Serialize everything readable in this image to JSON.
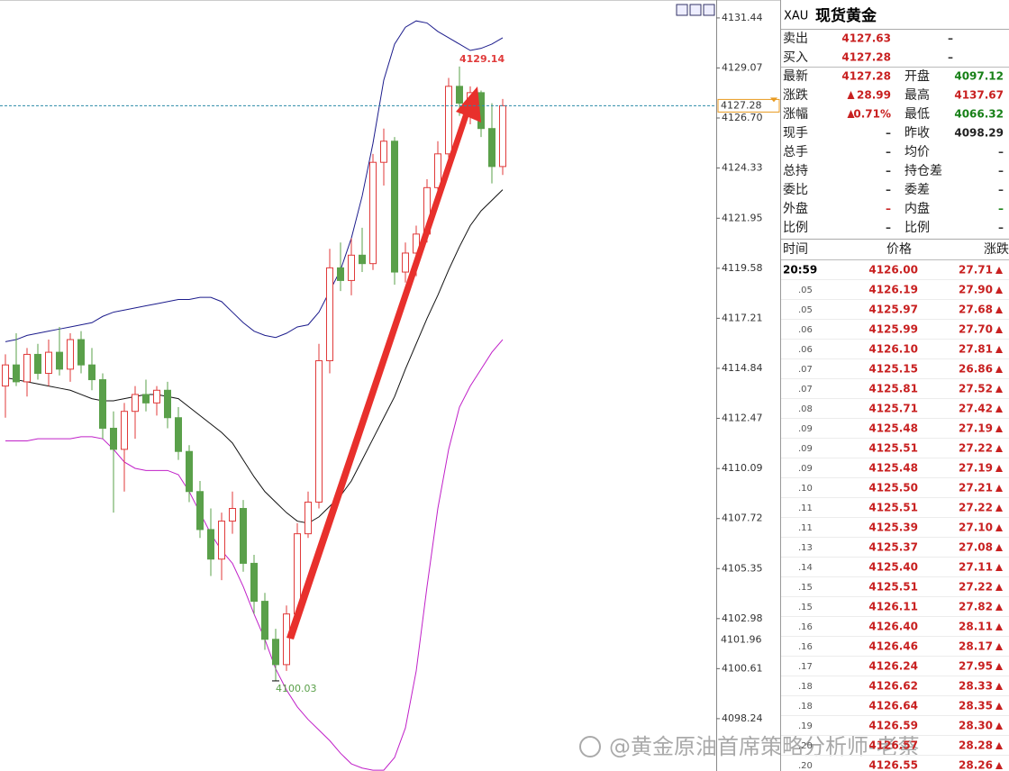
{
  "chart_data": {
    "type": "candlestick",
    "open": [
      4114.0,
      4115.0,
      4114.2,
      4115.5,
      4114.6,
      4115.6,
      4114.8,
      4116.2,
      4115.0,
      4114.3,
      4112.0,
      4111.0,
      4112.8,
      4113.6,
      4113.2,
      4113.8,
      4112.5,
      4110.9,
      4109.0,
      4107.2,
      4105.8,
      4107.6,
      4108.2,
      4105.6,
      4103.8,
      4102.0,
      4100.8,
      4103.2,
      4107.0,
      4108.5,
      4115.2,
      4119.6,
      4119.0,
      4120.2,
      4119.8,
      4124.6,
      4125.6,
      4119.4,
      4120.3,
      4121.2,
      4123.4,
      4125.0,
      4128.2,
      4127.4,
      4127.9,
      4126.2,
      4124.4
    ],
    "high": [
      4115.5,
      4116.5,
      4115.8,
      4116.0,
      4116.2,
      4116.8,
      4116.5,
      4116.6,
      4115.8,
      4114.6,
      4112.8,
      4113.2,
      4114.0,
      4114.3,
      4114.0,
      4114.2,
      4113.0,
      4111.2,
      4109.5,
      4108.2,
      4108.0,
      4109.0,
      4108.6,
      4106.0,
      4104.2,
      4102.5,
      4103.6,
      4107.5,
      4109.0,
      4116.0,
      4120.5,
      4120.8,
      4121.0,
      4121.5,
      4125.0,
      4126.2,
      4125.8,
      4120.8,
      4121.6,
      4123.8,
      4125.6,
      4128.6,
      4129.14,
      4128.2,
      4128.0,
      4127.4,
      4127.6
    ],
    "low": [
      4112.5,
      4114.0,
      4113.5,
      4114.3,
      4114.0,
      4114.5,
      4114.2,
      4114.6,
      4113.8,
      4111.5,
      4108.0,
      4109.0,
      4111.5,
      4112.8,
      4112.6,
      4112.0,
      4110.5,
      4108.5,
      4106.8,
      4105.0,
      4104.8,
      4107.0,
      4105.2,
      4103.2,
      4101.5,
      4100.03,
      4100.5,
      4103.0,
      4106.8,
      4108.2,
      4114.6,
      4118.5,
      4118.3,
      4119.4,
      4119.5,
      4123.5,
      4118.8,
      4118.9,
      4119.2,
      4120.8,
      4123.0,
      4124.6,
      4126.8,
      4126.4,
      4125.8,
      4123.6,
      4124.0
    ],
    "close": [
      4115.0,
      4114.2,
      4115.5,
      4114.6,
      4115.6,
      4114.8,
      4116.2,
      4115.0,
      4114.3,
      4112.0,
      4111.0,
      4112.8,
      4113.6,
      4113.2,
      4113.8,
      4112.5,
      4110.9,
      4109.0,
      4107.2,
      4105.8,
      4107.6,
      4108.2,
      4105.6,
      4103.8,
      4102.0,
      4100.8,
      4103.2,
      4107.0,
      4108.5,
      4115.2,
      4119.6,
      4119.0,
      4120.2,
      4119.8,
      4124.6,
      4125.6,
      4119.4,
      4120.3,
      4121.2,
      4123.4,
      4125.0,
      4128.2,
      4127.4,
      4127.9,
      4126.2,
      4124.4,
      4127.28
    ],
    "up_color": "#e03a3a",
    "down_color": "#5aa04a",
    "bands": [
      {
        "color": "#1c1c8c",
        "values": [
          4116.1,
          4116.2,
          4116.4,
          4116.5,
          4116.6,
          4116.7,
          4116.8,
          4116.9,
          4117.0,
          4117.3,
          4117.5,
          4117.6,
          4117.7,
          4117.8,
          4117.9,
          4118.0,
          4118.1,
          4118.1,
          4118.2,
          4118.2,
          4118.0,
          4117.5,
          4117.0,
          4116.6,
          4116.4,
          4116.3,
          4116.5,
          4116.8,
          4116.9,
          4117.5,
          4118.5,
          4119.5,
          4121.0,
          4123.0,
          4125.5,
          4128.5,
          4130.2,
          4131.0,
          4131.3,
          4131.2,
          4130.8,
          4130.5,
          4130.2,
          4129.9,
          4130.0,
          4130.2,
          4130.5
        ]
      },
      {
        "color": "#111111",
        "values": [
          4114.4,
          4114.3,
          4114.2,
          4114.1,
          4114.0,
          4113.9,
          4113.8,
          4113.6,
          4113.4,
          4113.3,
          4113.3,
          4113.4,
          4113.5,
          4113.6,
          4113.6,
          4113.5,
          4113.4,
          4113.0,
          4112.6,
          4112.2,
          4111.8,
          4111.3,
          4110.5,
          4109.7,
          4109.0,
          4108.5,
          4108.0,
          4107.6,
          4107.5,
          4107.8,
          4108.3,
          4108.8,
          4109.5,
          4110.5,
          4111.5,
          4112.5,
          4113.5,
          4114.8,
          4116.0,
          4117.2,
          4118.3,
          4119.5,
          4120.6,
          4121.6,
          4122.3,
          4122.8,
          4123.3
        ]
      },
      {
        "color": "#c020c8",
        "values": [
          4111.4,
          4111.4,
          4111.4,
          4111.5,
          4111.5,
          4111.5,
          4111.5,
          4111.6,
          4111.6,
          4111.5,
          4111.0,
          4110.4,
          4110.1,
          4110.0,
          4110.0,
          4110.0,
          4109.8,
          4109.0,
          4108.0,
          4107.0,
          4106.2,
          4105.6,
          4104.5,
          4103.2,
          4102.0,
          4100.6,
          4099.6,
          4098.8,
          4098.2,
          4097.7,
          4097.2,
          4096.6,
          4096.1,
          4095.9,
          4095.8,
          4095.8,
          4096.4,
          4097.8,
          4100.5,
          4104.5,
          4108.2,
          4111.0,
          4113.0,
          4114.0,
          4114.8,
          4115.6,
          4116.2
        ]
      }
    ],
    "ylim": [
      4095.76,
      4132.29
    ],
    "yticks": [
      4131.44,
      4129.07,
      {
        "value": 4126.7,
        "label": "4126.70"
      },
      4124.33,
      4121.95,
      4119.58,
      4117.21,
      4114.84,
      4112.47,
      4110.09,
      4107.72,
      4105.35,
      4102.98,
      4100.61,
      4098.24
    ],
    "marker_label": 4101.96,
    "watermark": "@黄金原油首席策略分析师-老蔡"
  },
  "quote": {
    "symbol": "XAU",
    "name": "现货黄金",
    "rows": [
      {
        "label": "卖出",
        "value": "4127.63",
        "color": "#c82020",
        "value2": "–"
      },
      {
        "label": "买入",
        "value": "4127.28",
        "color": "#c82020",
        "value2": "–"
      },
      {
        "label": "最新",
        "value": "4127.28",
        "color": "#c82020",
        "label2": "开盘",
        "value2": "4097.12",
        "color2": "#178017"
      },
      {
        "label": "涨跌",
        "value": "28.99",
        "color": "#c82020",
        "up": true,
        "label2": "最高",
        "value2": "4137.67",
        "color2": "#c82020"
      },
      {
        "label": "涨幅",
        "value": "0.71%",
        "color": "#c82020",
        "up": true,
        "label2": "最低",
        "value2": "4066.32",
        "color2": "#178017"
      },
      {
        "label": "现手",
        "value": "–",
        "color": "#333333",
        "label2": "昨收",
        "value2": "4098.29",
        "color2": "#222222"
      },
      {
        "label": "总手",
        "value": "–",
        "color": "#333333",
        "label2": "均价",
        "value2": "–",
        "color2": "#333333"
      },
      {
        "label": "总持",
        "value": "–",
        "color": "#333333",
        "label2": "持仓差",
        "value2": "–",
        "color2": "#333333"
      },
      {
        "label": "委比",
        "value": "–",
        "color": "#333333",
        "label2": "委差",
        "value2": "–",
        "color2": "#333333"
      },
      {
        "label": "外盘",
        "value": "–",
        "color": "#c82020",
        "label2": "内盘",
        "value2": "–",
        "color2": "#178017"
      },
      {
        "label": "比例",
        "value": "–",
        "color": "#333333",
        "label2": "比例",
        "value2": "–",
        "color2": "#333333"
      }
    ],
    "ticks_header": [
      "时间",
      "价格",
      "涨跌"
    ],
    "tick_color": "#c82020",
    "ticks": [
      [
        "20:59",
        "4126.00",
        "27.71"
      ],
      [
        ".05",
        "4126.19",
        "27.90"
      ],
      [
        ".05",
        "4125.97",
        "27.68"
      ],
      [
        ".06",
        "4125.99",
        "27.70"
      ],
      [
        ".06",
        "4126.10",
        "27.81"
      ],
      [
        ".07",
        "4125.15",
        "26.86"
      ],
      [
        ".07",
        "4125.81",
        "27.52"
      ],
      [
        ".08",
        "4125.71",
        "27.42"
      ],
      [
        ".09",
        "4125.48",
        "27.19"
      ],
      [
        ".09",
        "4125.51",
        "27.22"
      ],
      [
        ".09",
        "4125.48",
        "27.19"
      ],
      [
        ".10",
        "4125.50",
        "27.21"
      ],
      [
        ".11",
        "4125.51",
        "27.22"
      ],
      [
        ".11",
        "4125.39",
        "27.10"
      ],
      [
        ".13",
        "4125.37",
        "27.08"
      ],
      [
        ".14",
        "4125.40",
        "27.11"
      ],
      [
        ".15",
        "4125.51",
        "27.22"
      ],
      [
        ".15",
        "4126.11",
        "27.82"
      ],
      [
        ".16",
        "4126.40",
        "28.11"
      ],
      [
        ".16",
        "4126.46",
        "28.17"
      ],
      [
        ".17",
        "4126.24",
        "27.95"
      ],
      [
        ".18",
        "4126.62",
        "28.33"
      ],
      [
        ".18",
        "4126.64",
        "28.35"
      ],
      [
        ".19",
        "4126.59",
        "28.30"
      ],
      [
        ".20",
        "4126.57",
        "28.28"
      ],
      [
        ".20",
        "4126.55",
        "28.26"
      ]
    ]
  }
}
